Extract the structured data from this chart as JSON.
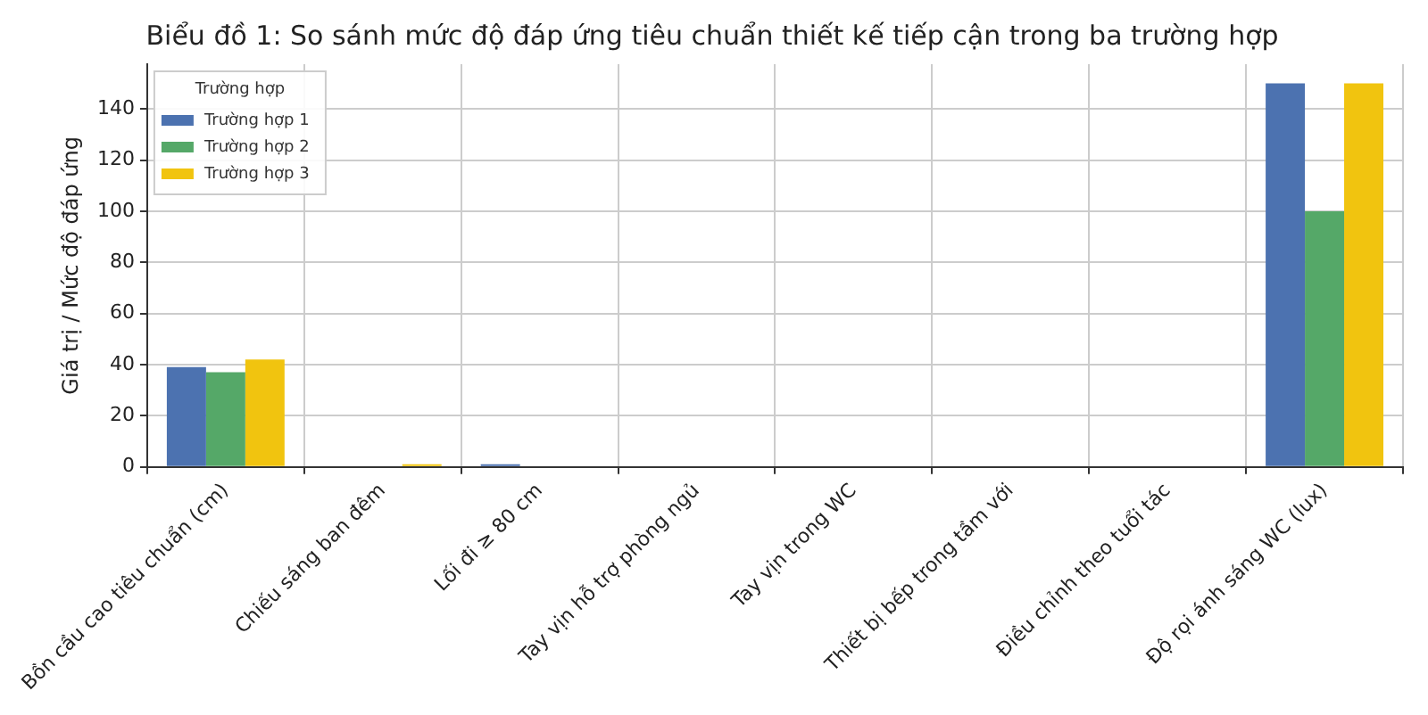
{
  "chart_data": {
    "type": "bar",
    "title": "Biểu đồ 1: So sánh mức độ đáp ứng tiêu chuẩn thiết kế tiếp cận trong ba trường hợp",
    "ylabel": "Giá trị / Mức độ đáp ứng",
    "legend_title": "Trường hợp",
    "categories": [
      "Bồn cầu cao tiêu chuẩn (cm)",
      "Chiếu sáng ban đêm",
      "Lối đi ≥ 80 cm",
      "Tay vịn hỗ trợ phòng ngủ",
      "Tay vịn trong WC",
      "Thiết bị bếp trong tầm với",
      "Điều chỉnh theo tuổi tác",
      "Độ rọi ánh sáng WC (lux)"
    ],
    "series": [
      {
        "name": "Trường hợp 1",
        "color": "#4c72b0",
        "values": [
          39,
          0,
          1,
          0,
          0,
          0,
          0,
          150
        ]
      },
      {
        "name": "Trường hợp 2",
        "color": "#55a868",
        "values": [
          37,
          0,
          0,
          0,
          0,
          0,
          0,
          100
        ]
      },
      {
        "name": "Trường hợp 3",
        "color": "#f1c40f",
        "values": [
          42,
          1,
          0,
          0,
          0,
          0,
          0,
          150
        ]
      }
    ],
    "ylim": [
      0,
      157.5
    ],
    "yticks": [
      0,
      20,
      40,
      60,
      80,
      100,
      120,
      140
    ],
    "grid": true,
    "legend": "top left"
  }
}
